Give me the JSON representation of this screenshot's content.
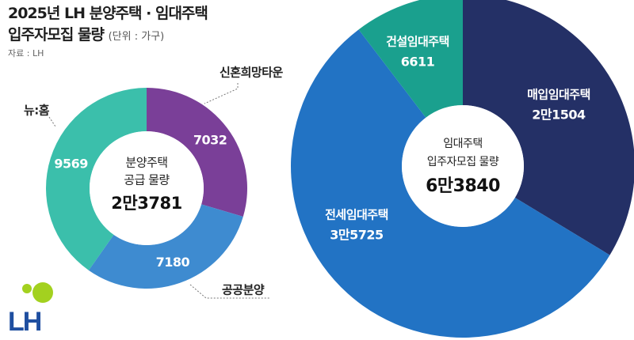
{
  "title": {
    "line1": "2025년 LH 분양주택 · 임대주택",
    "line2": "입주자모집 물량",
    "unit": "(단위 : 가구)"
  },
  "source": "자료 : LH",
  "logo_text": "LH",
  "colors": {
    "background": "#ffffff",
    "teal": "#3bbfab",
    "purple": "#7a3f98",
    "light_blue": "#3e8bd0",
    "navy": "#243066",
    "blue": "#2273c4",
    "rental_teal": "#1aa08e",
    "logo_lime": "#a3d11f",
    "logo_navy": "#1f4fa0"
  },
  "chart_data": [
    {
      "type": "pie",
      "donut": true,
      "center_label_lines": [
        "분양주택",
        "공급 물량"
      ],
      "total_label": "2만3781",
      "total": 23781,
      "slices": [
        {
          "name": "신혼희망타운",
          "value": 7032,
          "label": "7032",
          "color": "#7a3f98"
        },
        {
          "name": "공공분양",
          "value": 7180,
          "label": "7180",
          "color": "#3e8bd0"
        },
        {
          "name": "뉴:홈",
          "value": 9569,
          "label": "9569",
          "color": "#3bbfab"
        }
      ]
    },
    {
      "type": "pie",
      "donut": true,
      "center_label_lines": [
        "임대주택",
        "입주자모집 물량"
      ],
      "total_label": "6만3840",
      "total": 63840,
      "slices": [
        {
          "name": "매입임대주택",
          "value": 21504,
          "label": "2만1504",
          "color": "#243066"
        },
        {
          "name": "전세임대주택",
          "value": 35725,
          "label": "3만5725",
          "color": "#2273c4"
        },
        {
          "name": "건설임대주택",
          "value": 6611,
          "label": "6611",
          "color": "#1aa08e"
        }
      ]
    }
  ]
}
